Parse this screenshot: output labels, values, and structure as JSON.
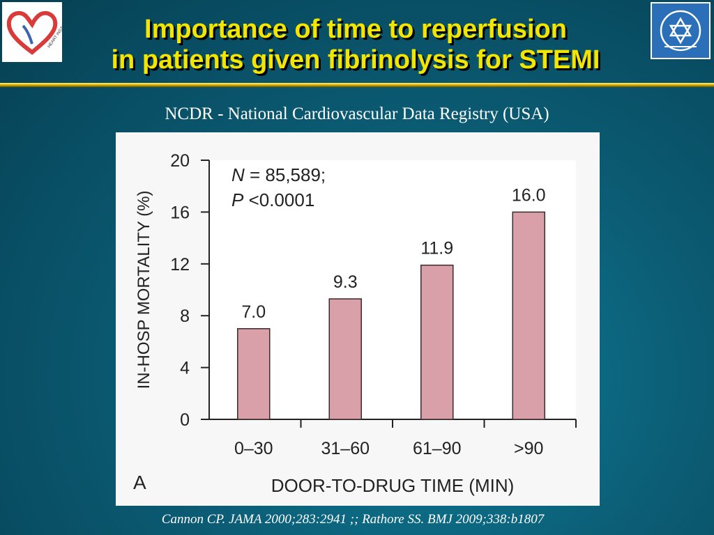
{
  "header": {
    "title_line1": "Importance of time to reperfusion",
    "title_line2": "in patients given fibrinolysis for STEMI",
    "left_logo": {
      "icon": "heart-institute-logo",
      "text": "HEART INSTITUTE",
      "color": "#d93a3a"
    },
    "right_logo": {
      "icon": "star-of-david-emblem",
      "color": "#2a6fb8"
    }
  },
  "subtitle": "NCDR - National Cardiovascular Data Registry (USA)",
  "chart_data": {
    "type": "bar",
    "categories": [
      "0–30",
      "31–60",
      "61–90",
      ">90"
    ],
    "values": [
      7.0,
      9.3,
      11.9,
      16.0
    ],
    "value_labels": [
      "7.0",
      "9.3",
      "11.9",
      "16.0"
    ],
    "yticks": [
      "0",
      "4",
      "8",
      "12",
      "16",
      "20"
    ],
    "ylim": [
      0,
      20
    ],
    "ylabel": "IN-HOSP MORTALITY (%)",
    "xlabel": "DOOR-TO-DRUG TIME (MIN)",
    "panel_label": "A",
    "annotation_line1_var": "N",
    "annotation_line1_text": " = 85,589;",
    "annotation_line2_var": "P",
    "annotation_line2_text": " <0.0001",
    "bar_color": "#d9a0aa",
    "bar_stroke": "#3a2a2a",
    "plot_background": "#ffffff",
    "grid": false
  },
  "citation": "Cannon CP. JAMA 2000;283:2941 ;; Rathore SS. BMJ 2009;338:b1807"
}
